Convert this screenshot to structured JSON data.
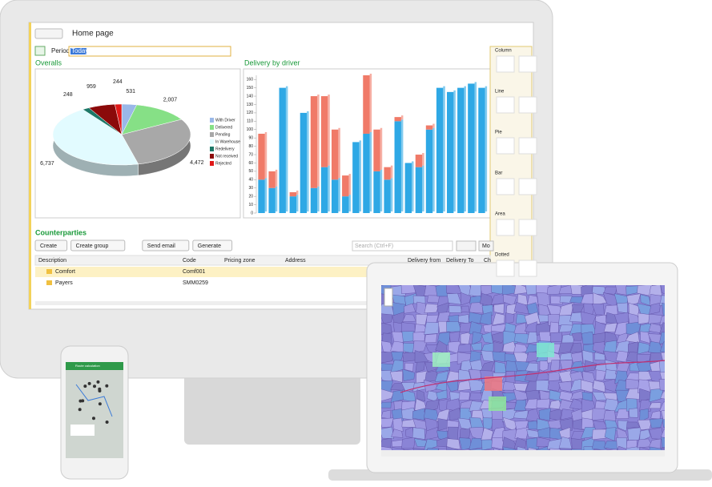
{
  "header": {
    "title": "Home page"
  },
  "period": {
    "label": "Period:",
    "value": "Today"
  },
  "overalls": {
    "type": "pie",
    "title": "Overalls",
    "categories": [
      "With Driver",
      "Delivered",
      "Pending",
      "In Warehouse",
      "Redelivery",
      "Not received",
      "Rejected"
    ],
    "values": [
      531,
      2007,
      4472,
      6737,
      248,
      959,
      244
    ],
    "value_labels": [
      "531",
      "2,007",
      "4,472",
      "6,737",
      "248",
      "959",
      "244"
    ],
    "colors": [
      "#9ab8e8",
      "#86e086",
      "#a8a8a8",
      "#e2fbff",
      "#1c7868",
      "#8b0a0a",
      "#e01818"
    ]
  },
  "delivery": {
    "type": "bar",
    "title": "Delivery by driver",
    "stacked": true,
    "ylim": [
      0,
      165
    ],
    "yticks": [
      0,
      10,
      20,
      30,
      40,
      50,
      60,
      70,
      80,
      90,
      100,
      110,
      120,
      130,
      140,
      150,
      160
    ],
    "series": [
      {
        "color": "#2ea8e5",
        "values": [
          40,
          30,
          150,
          20,
          120,
          30,
          55,
          40,
          20,
          85,
          95,
          50,
          40,
          110,
          60,
          55,
          100,
          150,
          145,
          150,
          155,
          150
        ]
      },
      {
        "color": "#f07a68",
        "values": [
          55,
          20,
          0,
          5,
          0,
          110,
          85,
          60,
          25,
          0,
          70,
          50,
          15,
          5,
          0,
          15,
          5,
          0,
          0,
          0,
          0,
          0
        ]
      }
    ]
  },
  "chart_types": [
    "Column",
    "Line",
    "Pie",
    "Bar",
    "Area",
    "Dotted"
  ],
  "counterparties": {
    "title": "Counterparties",
    "buttons": [
      "Create",
      "Create group",
      "Send email",
      "Generate"
    ],
    "search": "Search (Ctrl+F)",
    "more": "Mo"
  },
  "table": {
    "columns": [
      "Description",
      "Code",
      "Pricing zone",
      "Address",
      "Delivery from",
      "Delivery To",
      "Ch"
    ],
    "rows": [
      [
        "Comfort",
        "Comf001"
      ],
      [
        "Payers",
        "SMM0259"
      ]
    ]
  },
  "mobile": {
    "title": "Route calculation"
  }
}
